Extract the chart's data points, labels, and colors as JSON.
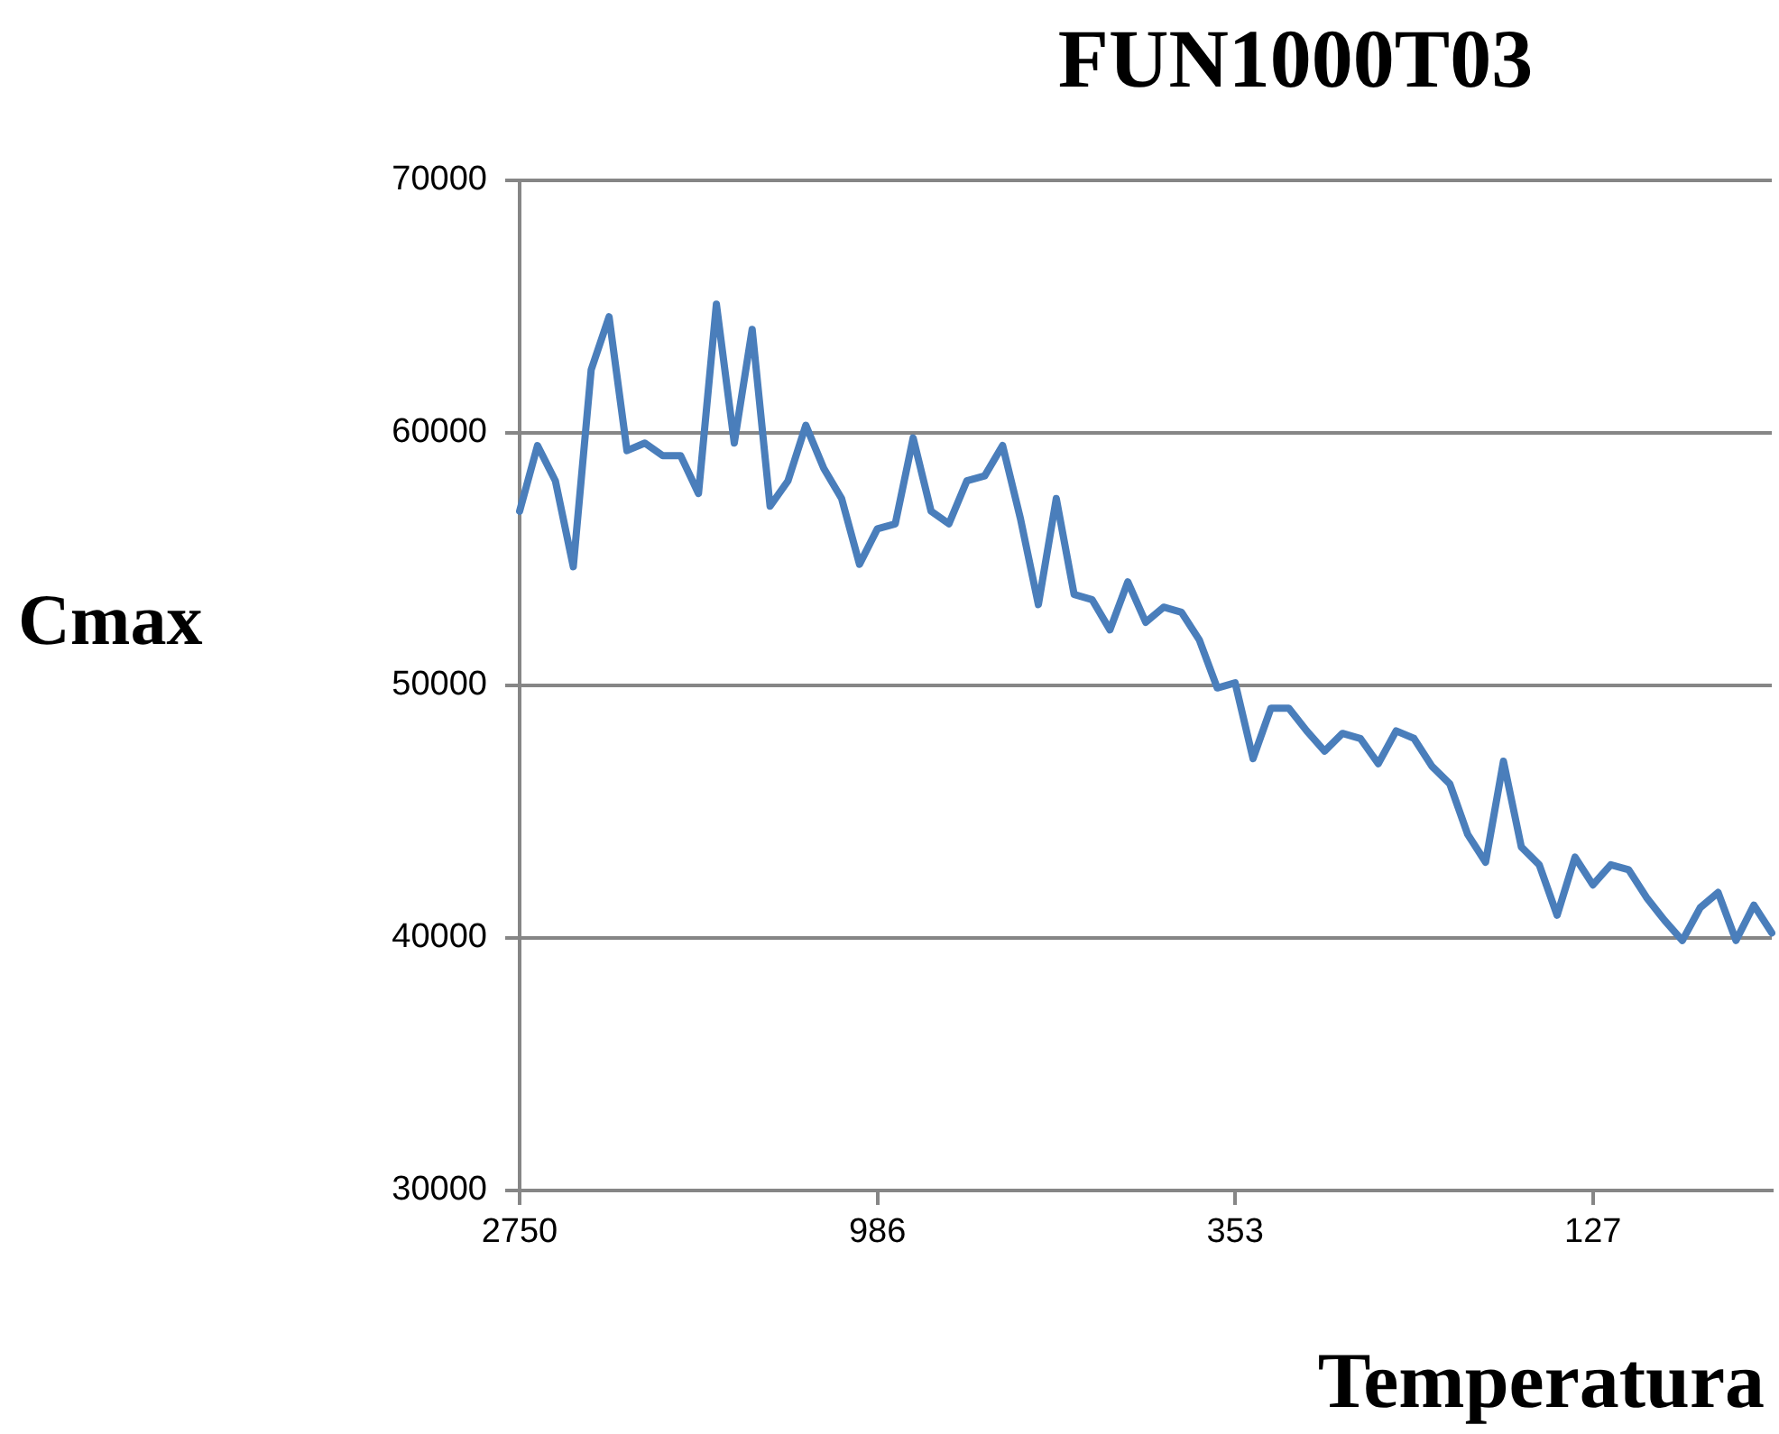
{
  "chart_data": {
    "type": "line",
    "title": "FUN1000T03",
    "xlabel": "Temperatura",
    "ylabel": "Cmax",
    "categories": [
      "2750",
      null,
      null,
      null,
      null,
      null,
      null,
      null,
      null,
      null,
      null,
      null,
      null,
      null,
      null,
      null,
      null,
      null,
      null,
      null,
      "986",
      null,
      null,
      null,
      null,
      null,
      null,
      null,
      null,
      null,
      null,
      null,
      null,
      null,
      null,
      null,
      null,
      null,
      null,
      null,
      "353",
      null,
      null,
      null,
      null,
      null,
      null,
      null,
      null,
      null,
      null,
      null,
      null,
      null,
      null,
      null,
      null,
      null,
      null,
      null,
      "127",
      null,
      null,
      null,
      null,
      null,
      null,
      null,
      null,
      null,
      null
    ],
    "series": [
      {
        "color": "#4a7ebb",
        "values": [
          56900,
          59500,
          58100,
          54700,
          62500,
          64600,
          59300,
          59600,
          59100,
          59100,
          57600,
          65100,
          59600,
          64100,
          57100,
          58100,
          60300,
          58600,
          57400,
          54800,
          56200,
          56400,
          59800,
          56900,
          56400,
          58100,
          58300,
          59500,
          56600,
          53200,
          57400,
          53600,
          53400,
          52200,
          54100,
          52500,
          53100,
          52900,
          51800,
          49900,
          50100,
          47100,
          49100,
          49100,
          48200,
          47400,
          48100,
          47900,
          46900,
          48200,
          47900,
          46800,
          46100,
          44100,
          43000,
          47000,
          43600,
          42900,
          40900,
          43200,
          42100,
          42900,
          42700,
          41600,
          40700,
          39900,
          41200,
          41800,
          39900,
          41300,
          40200
        ]
      }
    ],
    "ylim": [
      30000,
      70000
    ],
    "yticks": [
      30000,
      40000,
      50000,
      60000,
      70000
    ],
    "grid": "y",
    "legend": false,
    "marker": "none",
    "line_style": "solid"
  }
}
